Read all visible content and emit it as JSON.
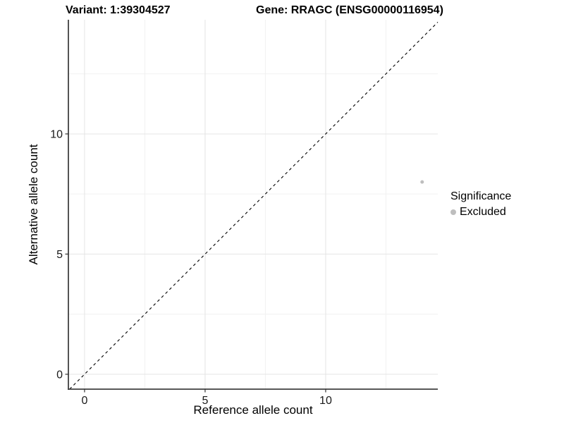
{
  "header": {
    "variant": "Variant: 1:39304527",
    "gene": "Gene: RRAGC (ENSG00000116954)"
  },
  "chart_data": {
    "type": "scatter",
    "title": "Variant: 1:39304527    Gene: RRAGC (ENSG00000116954)",
    "xlabel": "Reference allele count",
    "ylabel": "Alternative allele count",
    "xlim": [
      -0.67,
      14.65
    ],
    "ylim": [
      -0.62,
      14.75
    ],
    "x_major_ticks": [
      0,
      5,
      10
    ],
    "y_major_ticks": [
      0,
      5,
      10
    ],
    "x_minor_ticks": [
      2.5,
      7.5,
      12.5
    ],
    "y_minor_ticks": [
      2.5,
      7.5,
      12.5
    ],
    "grid": true,
    "reference_line": {
      "type": "identity",
      "style": "dashed",
      "color": "#000000"
    },
    "series": [
      {
        "name": "Excluded",
        "color": "#bebebe",
        "points": [
          {
            "x": 14,
            "y": 8
          }
        ]
      }
    ],
    "legend": {
      "title": "Significance",
      "position": "right",
      "entries": [
        {
          "label": "Excluded",
          "color": "#bebebe"
        }
      ]
    }
  },
  "colors": {
    "grid_major": "#e4e4e4",
    "grid_minor": "#f1f1f1",
    "axis_line": "#404040",
    "tick_mark": "#333333",
    "tick_label": "#1a1a1a",
    "text": "#000000"
  }
}
